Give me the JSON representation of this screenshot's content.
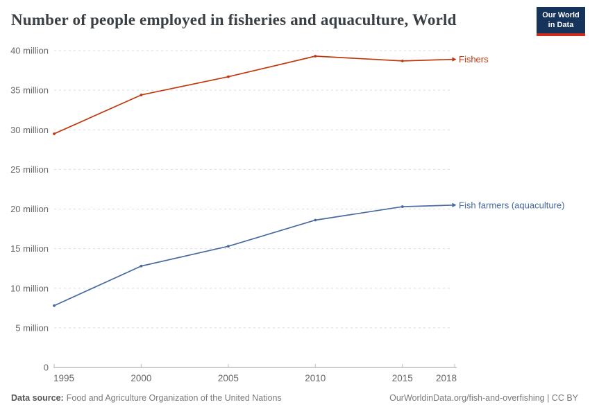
{
  "header": {
    "title": "Number of people employed in fisheries and aquaculture, World",
    "logo": {
      "line1": "Our World",
      "line2": "in Data"
    }
  },
  "chart_data": {
    "type": "line",
    "title": "Number of people employed in fisheries and aquaculture, World",
    "unit": "million people",
    "x": [
      1995,
      2000,
      2005,
      2010,
      2015,
      2018
    ],
    "x_tick_labels": [
      "1995",
      "2000",
      "2005",
      "2010",
      "2015",
      "2018"
    ],
    "series": [
      {
        "name": "Fishers",
        "color": "#C0390E",
        "values": [
          29.5,
          34.4,
          36.7,
          39.3,
          38.7,
          38.9
        ]
      },
      {
        "name": "Fish farmers (aquaculture)",
        "color": "#4669A0",
        "values": [
          7.8,
          12.8,
          15.3,
          18.6,
          20.3,
          20.5
        ]
      }
    ],
    "y_ticks": [
      0,
      5,
      10,
      15,
      20,
      25,
      30,
      35,
      40
    ],
    "y_tick_labels": [
      "0",
      "5 million",
      "10 million",
      "15 million",
      "20 million",
      "25 million",
      "30 million",
      "35 million",
      "40 million"
    ],
    "ylim": [
      0,
      40
    ],
    "xlim": [
      1995,
      2018
    ],
    "grid": "horizontal-dashed",
    "legend_position": "line-end-labels"
  },
  "footer": {
    "source_label": "Data source:",
    "source_text": "Food and Agriculture Organization of the United Nations",
    "attribution": "OurWorldinData.org/fish-and-overfishing | CC BY"
  },
  "colors": {
    "fishers_line": "#C0390E",
    "fish_farmers_line": "#4669A0",
    "logo_background": "#16335B",
    "logo_bar": "#CE2C1B",
    "gridline": "#dcdcdc",
    "axis_line": "#9e9e9e",
    "tick_label": "#666666"
  }
}
